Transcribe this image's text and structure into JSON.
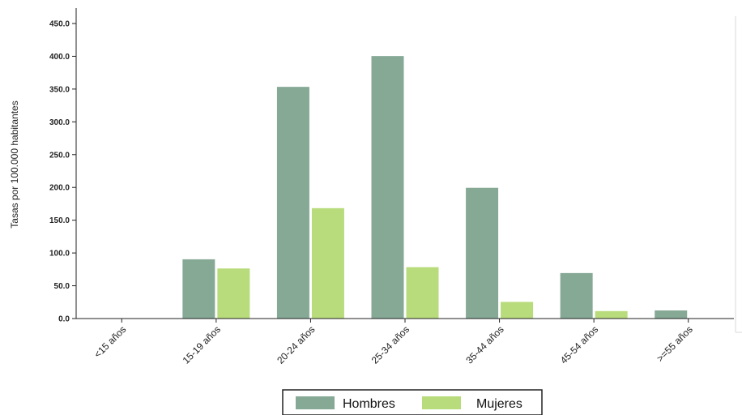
{
  "chart_data": {
    "type": "bar",
    "ylabel": "Tasas por 100.000 habitantes",
    "ylim": [
      0,
      450
    ],
    "yticks": [
      "0.0",
      "50.0",
      "100.0",
      "150.0",
      "200.0",
      "250.0",
      "300.0",
      "350.0",
      "400.0",
      "450.0"
    ],
    "categories": [
      "<15 años",
      "15-19 años",
      "20-24 años",
      "25-34 años",
      "35-44 años",
      "45-54 años",
      ">=55 años"
    ],
    "series": [
      {
        "name": "Hombres",
        "color": "#86a996",
        "values": [
          0,
          91,
          354,
          401,
          200,
          70,
          13
        ]
      },
      {
        "name": "Mujeres",
        "color": "#b8db7c",
        "values": [
          0,
          77,
          169,
          79,
          26,
          12,
          0
        ]
      }
    ],
    "legend_position": "bottom",
    "grid": false
  }
}
